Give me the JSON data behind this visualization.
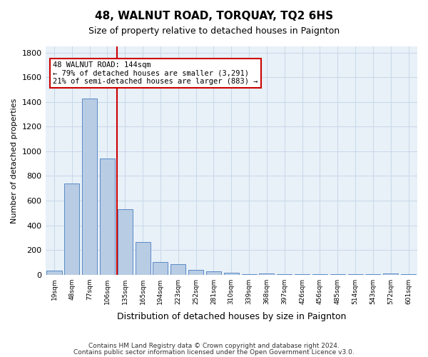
{
  "title": "48, WALNUT ROAD, TORQUAY, TQ2 6HS",
  "subtitle": "Size of property relative to detached houses in Paignton",
  "xlabel": "Distribution of detached houses by size in Paignton",
  "ylabel": "Number of detached properties",
  "footer_line1": "Contains HM Land Registry data © Crown copyright and database right 2024.",
  "footer_line2": "Contains public sector information licensed under the Open Government Licence v3.0.",
  "bin_labels": [
    "19sqm",
    "48sqm",
    "77sqm",
    "106sqm",
    "135sqm",
    "165sqm",
    "194sqm",
    "223sqm",
    "252sqm",
    "281sqm",
    "310sqm",
    "339sqm",
    "368sqm",
    "397sqm",
    "426sqm",
    "456sqm",
    "485sqm",
    "514sqm",
    "543sqm",
    "572sqm",
    "601sqm"
  ],
  "values": [
    35,
    740,
    1430,
    940,
    530,
    265,
    100,
    85,
    40,
    25,
    15,
    2,
    12,
    2,
    2,
    2,
    2,
    2,
    2,
    12,
    2
  ],
  "bar_color": "#b8cce4",
  "bar_edge_color": "#5a8ac6",
  "ref_line_x": 3.55,
  "ref_line_color": "#cc0000",
  "annotation_text": "48 WALNUT ROAD: 144sqm\n← 79% of detached houses are smaller (3,291)\n21% of semi-detached houses are larger (883) →",
  "annotation_box_color": "#ffffff",
  "annotation_box_edge_color": "#cc0000",
  "ylim": [
    0,
    1850
  ],
  "yticks": [
    0,
    200,
    400,
    600,
    800,
    1000,
    1200,
    1400,
    1600,
    1800
  ],
  "grid_color": "#c8d8e8",
  "plot_bg_color": "#e8f0f8"
}
